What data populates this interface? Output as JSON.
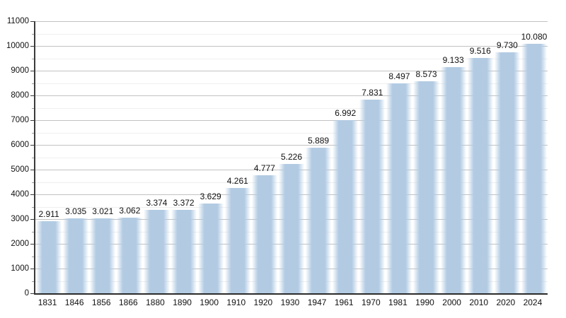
{
  "chart_data": {
    "type": "bar",
    "title": "",
    "xlabel": "",
    "ylabel": "",
    "categories": [
      "1831",
      "1846",
      "1856",
      "1866",
      "1880",
      "1890",
      "1900",
      "1910",
      "1920",
      "1930",
      "1947",
      "1961",
      "1970",
      "1981",
      "1990",
      "2000",
      "2010",
      "2020",
      "2024"
    ],
    "values": [
      2911,
      3035,
      3021,
      3062,
      3374,
      3372,
      3629,
      4261,
      4777,
      5226,
      5889,
      6992,
      7831,
      8497,
      8573,
      9133,
      9516,
      9730,
      10080
    ],
    "value_labels": [
      "2.911",
      "3.035",
      "3.021",
      "3.062",
      "3.374",
      "3.372",
      "3.629",
      "4.261",
      "4.777",
      "5.226",
      "5.889",
      "6.992",
      "7.831",
      "8.497",
      "8.573",
      "9.133",
      "9.516",
      "9.730",
      "10.080"
    ],
    "ylim": [
      0,
      11000
    ],
    "y_major_step": 1000,
    "y_minor_step": 500,
    "grid": true,
    "legend_position": "none",
    "colors": {
      "bar": "#b2cbe3",
      "major_grid": "#c2c2c2",
      "minor_grid": "#efefef",
      "axis": "#3a3a3a",
      "minor_tick": "#9a9a9a",
      "text": "#111111",
      "background": "#ffffff"
    }
  }
}
